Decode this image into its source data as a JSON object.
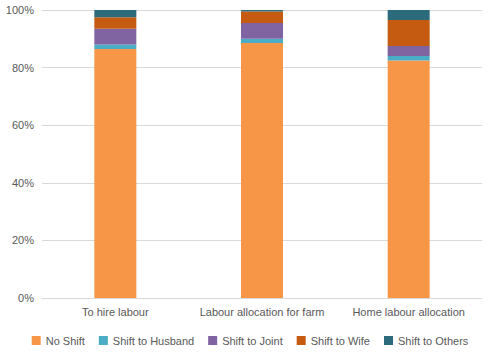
{
  "chart_data": {
    "type": "bar",
    "stacked": true,
    "grid": true,
    "legend": "bottom",
    "categories": [
      "To hire labour",
      "Labour allocation for farm",
      "Home labour allocation"
    ],
    "ylim": [
      0,
      100
    ],
    "yticks": [
      {
        "value": 0,
        "label": "0%"
      },
      {
        "value": 20,
        "label": "20%"
      },
      {
        "value": 40,
        "label": "40%"
      },
      {
        "value": 60,
        "label": "60%"
      },
      {
        "value": 80,
        "label": "80%"
      },
      {
        "value": 100,
        "label": "100%"
      }
    ],
    "series": [
      {
        "name": "No Shift",
        "color": "#f79646",
        "values": [
          86.5,
          88.5,
          82.5
        ]
      },
      {
        "name": "Shift to Husband",
        "color": "#4bacc6",
        "values": [
          1.5,
          1.5,
          1.5
        ]
      },
      {
        "name": "Shift to Joint",
        "color": "#8064a2",
        "values": [
          5.5,
          5.5,
          3.5
        ]
      },
      {
        "name": "Shift to Wife",
        "color": "#c55a11",
        "values": [
          4,
          4,
          9
        ]
      },
      {
        "name": "Shift to Others",
        "color": "#2c6b7c",
        "values": [
          2.5,
          0.5,
          3.5
        ]
      }
    ]
  }
}
